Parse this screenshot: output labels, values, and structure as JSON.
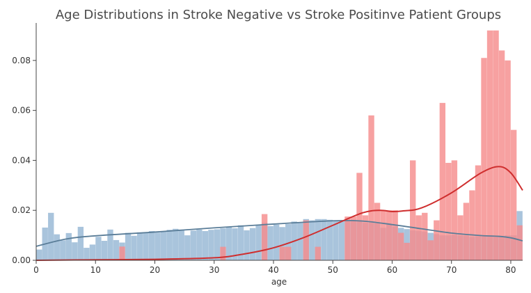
{
  "chart_data": {
    "type": "bar",
    "title": "Age Distributions in Stroke Negative vs Stroke Positinve Patient Groups",
    "xlabel": "age",
    "ylabel": "",
    "xlim": [
      0,
      82
    ],
    "ylim": [
      0,
      0.095
    ],
    "x_ticks": [
      "0",
      "10",
      "20",
      "30",
      "40",
      "50",
      "60",
      "70",
      "80"
    ],
    "y_ticks": [
      "0.00",
      "0.02",
      "0.04",
      "0.06",
      "0.08"
    ],
    "grid": false,
    "colors": {
      "stroke_negative_hist": "#a9c4dc",
      "stroke_negative_kde": "#5a7d98",
      "stroke_positive_hist": "#f58c8c",
      "stroke_positive_kde": "#cf2e2e",
      "axis": "#444444"
    },
    "series": [
      {
        "values": [
          0.0043,
          0.0131,
          0.019,
          0.0104,
          0.008,
          0.0109,
          0.0072,
          0.0134,
          0.005,
          0.0063,
          0.0094,
          0.0078,
          0.0123,
          0.0081,
          0.0071,
          0.011,
          0.0098,
          0.0112,
          0.0109,
          0.0117,
          0.0111,
          0.0114,
          0.0122,
          0.0126,
          0.0123,
          0.01,
          0.0119,
          0.0123,
          0.0117,
          0.0122,
          0.0124,
          0.0128,
          0.0133,
          0.0128,
          0.014,
          0.012,
          0.0129,
          0.014,
          0.015,
          0.0137,
          0.0143,
          0.0133,
          0.0145,
          0.0155,
          0.015,
          0.0165,
          0.016,
          0.0165,
          0.0165,
          0.0162,
          0.016,
          0.016,
          0.0158,
          0.016,
          0.016,
          0.015,
          0.015,
          0.0148,
          0.013,
          0.0145,
          0.0135,
          0.013,
          0.0125,
          0.012,
          0.0118,
          0.0115,
          0.011,
          0.0105,
          0.01,
          0.01,
          0.0102,
          0.01,
          0.0098,
          0.0094,
          0.0096,
          0.0095,
          0.0095,
          0.0094,
          0.0095,
          0.01,
          0.01,
          0.0197
        ],
        "kde": [
          [
            0,
            0.0056
          ],
          [
            5,
            0.0085
          ],
          [
            10,
            0.0098
          ],
          [
            20,
            0.0113
          ],
          [
            30,
            0.013
          ],
          [
            40,
            0.0145
          ],
          [
            50,
            0.0158
          ],
          [
            55,
            0.0157
          ],
          [
            60,
            0.0143
          ],
          [
            65,
            0.0126
          ],
          [
            70,
            0.0109
          ],
          [
            75,
            0.0099
          ],
          [
            78,
            0.0096
          ],
          [
            80,
            0.009
          ],
          [
            82,
            0.0078
          ]
        ]
      },
      {
        "values": [
          0,
          0,
          0,
          0,
          0,
          0,
          0,
          0,
          0,
          0,
          0,
          0,
          0,
          0,
          0.0055,
          0,
          0,
          0,
          0,
          0,
          0,
          0,
          0,
          0,
          0,
          0,
          0,
          0,
          0,
          0,
          0,
          0.0054,
          0,
          0,
          0,
          0,
          0,
          0,
          0.0185,
          0,
          0,
          0.0054,
          0.0054,
          0,
          0,
          0.016,
          0,
          0.0054,
          0,
          0,
          0,
          0,
          0.0175,
          0.0175,
          0.035,
          0.018,
          0.058,
          0.023,
          0.02,
          0.02,
          0.02,
          0.011,
          0.007,
          0.04,
          0.018,
          0.019,
          0.008,
          0.016,
          0.063,
          0.039,
          0.04,
          0.018,
          0.023,
          0.028,
          0.038,
          0.081,
          0.092,
          0.092,
          0.084,
          0.08,
          0.0522,
          0.014
        ],
        "kde": [
          [
            0,
            0.0
          ],
          [
            10,
            0.0002
          ],
          [
            20,
            0.0004
          ],
          [
            30,
            0.001
          ],
          [
            35,
            0.0025
          ],
          [
            40,
            0.005
          ],
          [
            45,
            0.009
          ],
          [
            50,
            0.014
          ],
          [
            55,
            0.019
          ],
          [
            58,
            0.02
          ],
          [
            60,
            0.0195
          ],
          [
            62,
            0.0198
          ],
          [
            65,
            0.021
          ],
          [
            70,
            0.027
          ],
          [
            75,
            0.035
          ],
          [
            78,
            0.0375
          ],
          [
            80,
            0.035
          ],
          [
            82,
            0.028
          ]
        ]
      }
    ]
  }
}
